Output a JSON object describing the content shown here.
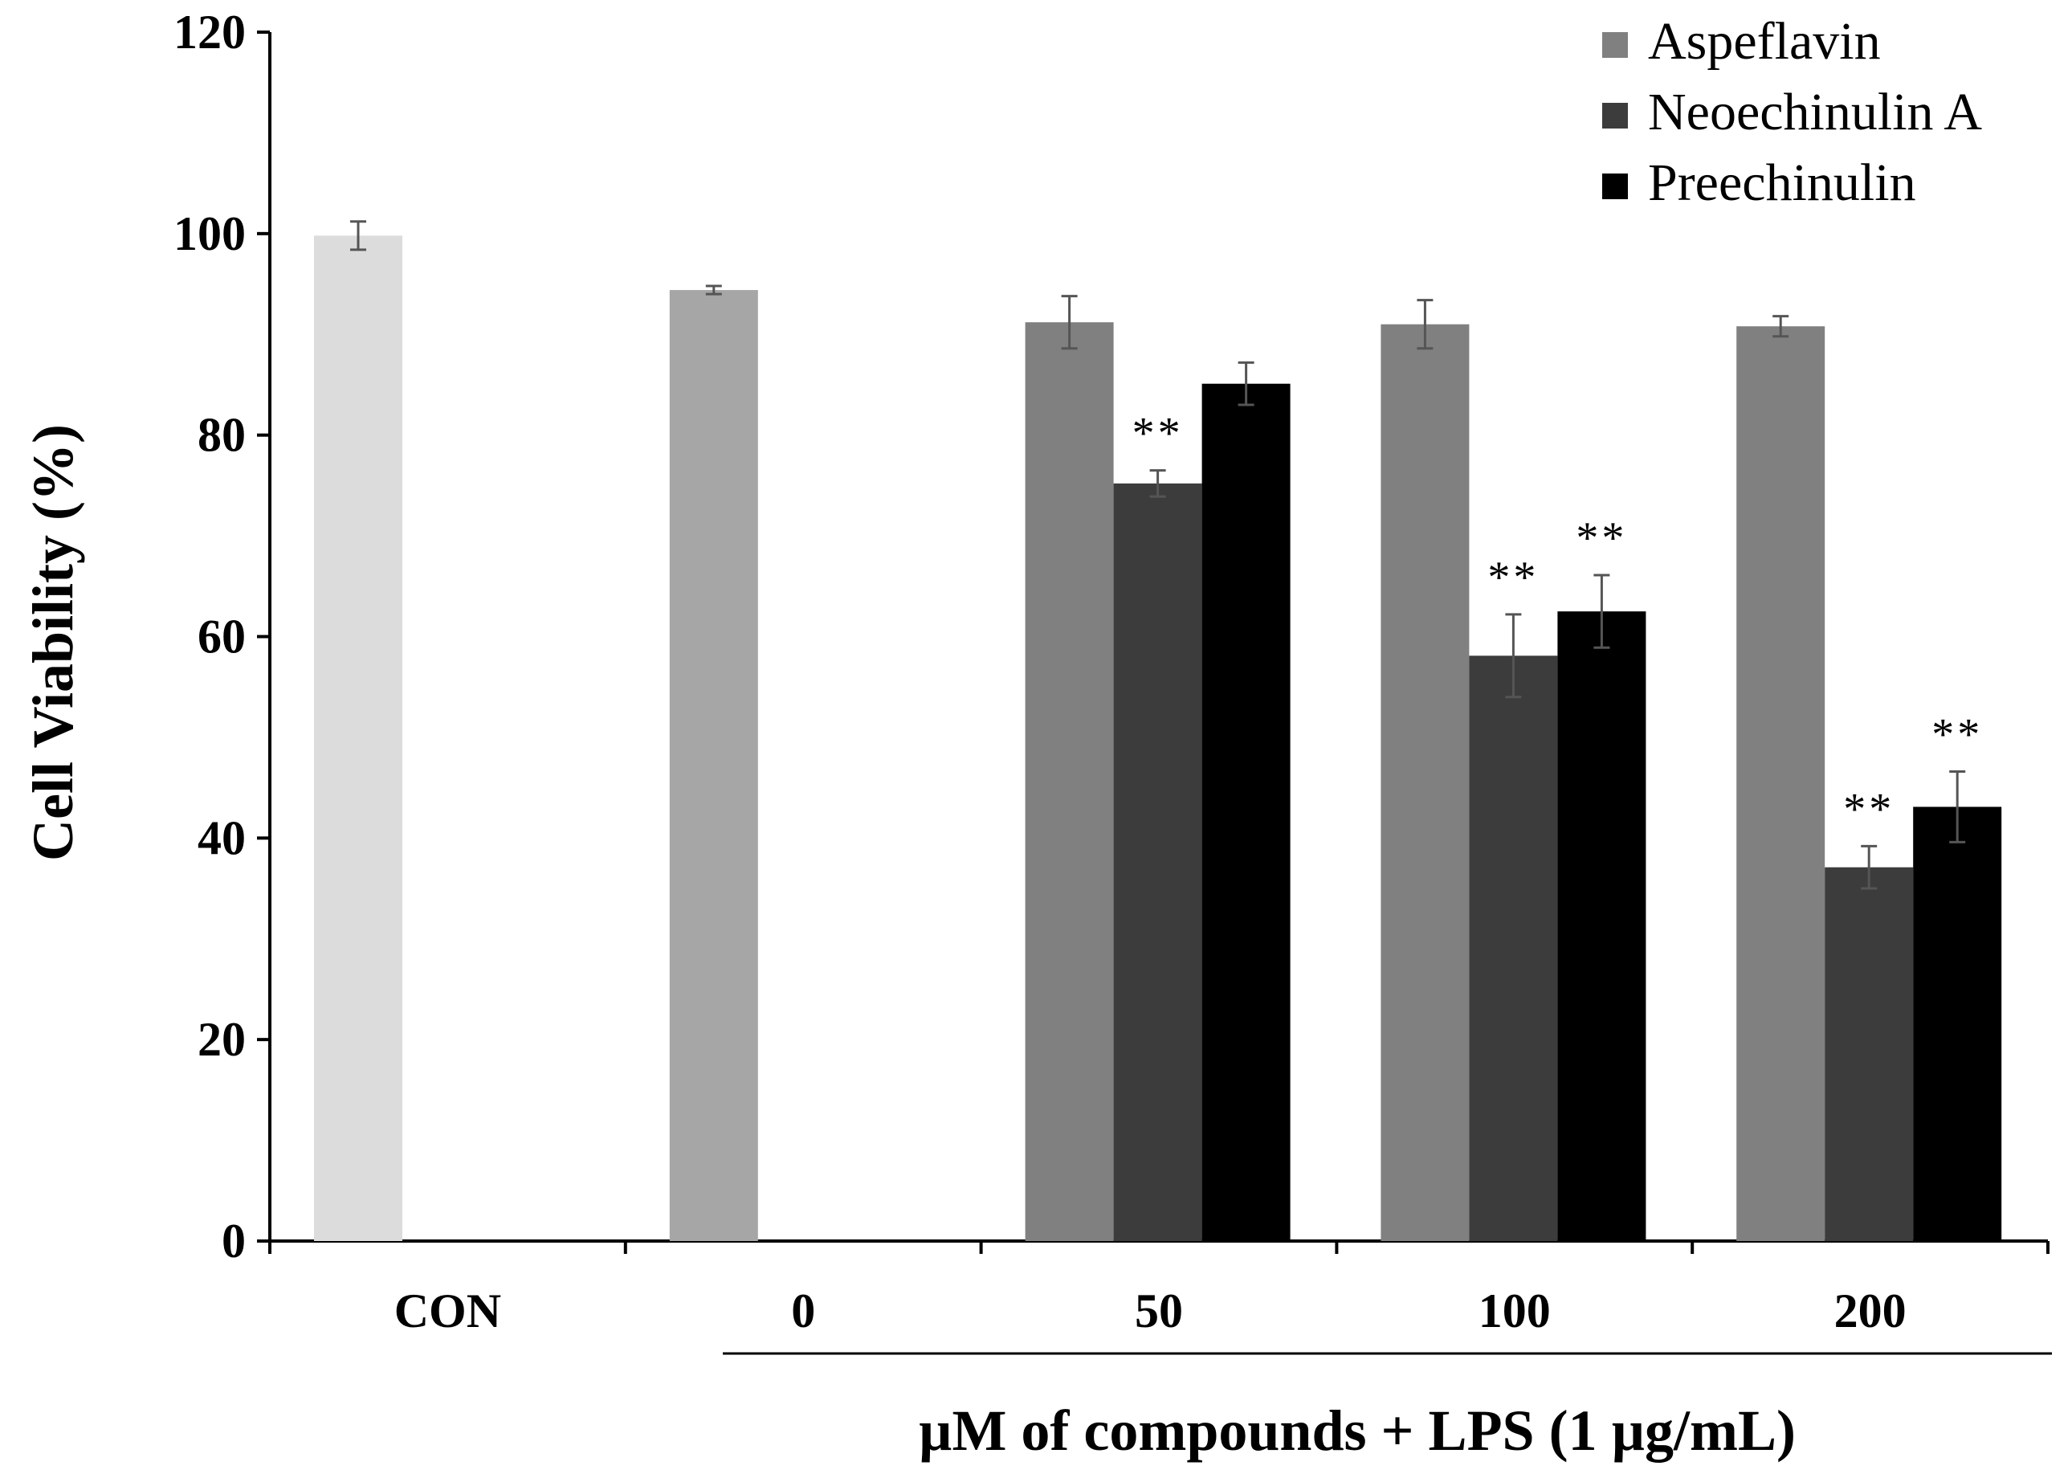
{
  "chart_data": {
    "type": "bar",
    "title": "",
    "ylabel": "Cell Viability (%)",
    "xlabel": "µM of compounds + LPS (1 µg/mL)",
    "ylim": [
      0,
      120
    ],
    "yticks": [
      0,
      20,
      40,
      60,
      80,
      100,
      120
    ],
    "categories": [
      "CON",
      "0",
      "50",
      "100",
      "200"
    ],
    "legend_position": "top-right",
    "series": [
      {
        "name": "Aspeflavin",
        "color": "#808080",
        "values": [
          null,
          null,
          91.2,
          91.0,
          90.8
        ],
        "errors": [
          null,
          null,
          2.6,
          2.4,
          1.0
        ]
      },
      {
        "name": "Neoechinulin A",
        "color": "#3c3c3c",
        "values": [
          null,
          null,
          75.2,
          58.1,
          37.1
        ],
        "errors": [
          null,
          null,
          1.3,
          4.1,
          2.1
        ]
      },
      {
        "name": "Preechinulin",
        "color": "#000000",
        "values": [
          null,
          null,
          85.1,
          62.5,
          43.1
        ],
        "errors": [
          null,
          null,
          2.1,
          3.6,
          3.5
        ]
      }
    ],
    "single_bars": [
      {
        "category": "CON",
        "value": 99.8,
        "error": 1.4,
        "color": "#dcdcdc"
      },
      {
        "category": "0",
        "value": 94.4,
        "error": 0.4,
        "color": "#a6a6a6"
      }
    ],
    "significance": [
      {
        "category": "50",
        "series": "Neoechinulin A",
        "label": "**"
      },
      {
        "category": "100",
        "series": "Neoechinulin A",
        "label": "**"
      },
      {
        "category": "100",
        "series": "Preechinulin",
        "label": "**"
      },
      {
        "category": "200",
        "series": "Neoechinulin A",
        "label": "**"
      },
      {
        "category": "200",
        "series": "Preechinulin",
        "label": "**"
      }
    ]
  }
}
